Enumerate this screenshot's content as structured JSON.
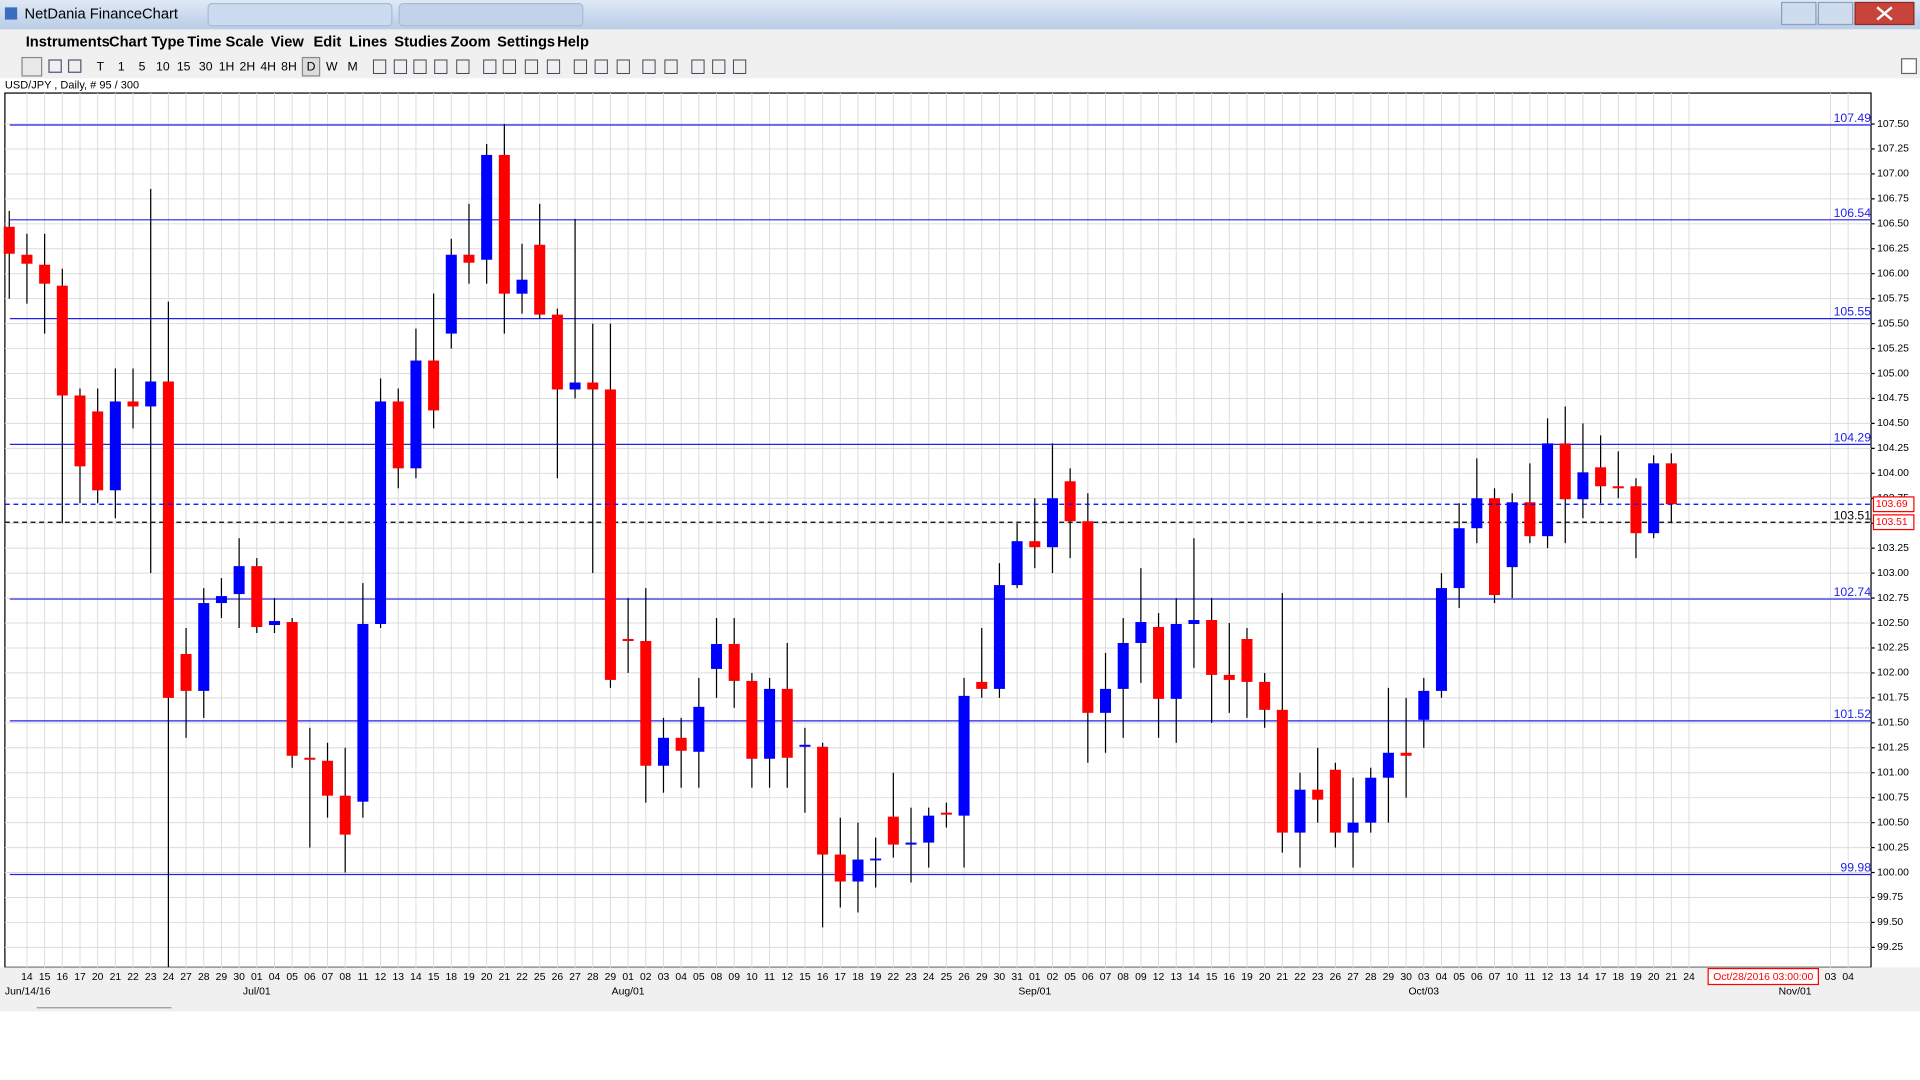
{
  "window": {
    "title": "NetDania FinanceChart"
  },
  "menu": [
    "Instruments",
    "Chart Type",
    "Time Scale",
    "View",
    "Edit",
    "Lines",
    "Studies",
    "Zoom",
    "Settings",
    "Help"
  ],
  "toolbar": {
    "timeframes": [
      "T",
      "1",
      "5",
      "10",
      "15",
      "30",
      "1H",
      "2H",
      "4H",
      "8H",
      "D",
      "W",
      "M"
    ]
  },
  "chart_data": {
    "type": "candlestick",
    "title": "USD/JPY , Daily, # 95 / 300",
    "up_color": "#0000ff",
    "down_color": "#ff0000",
    "level_color": "#2222ee",
    "grid": true,
    "dates": [
      "14",
      "15",
      "16",
      "17",
      "20",
      "21",
      "22",
      "23",
      "24",
      "27",
      "28",
      "29",
      "30",
      "01",
      "04",
      "05",
      "06",
      "07",
      "08",
      "11",
      "12",
      "13",
      "14",
      "15",
      "18",
      "19",
      "20",
      "21",
      "22",
      "25",
      "26",
      "27",
      "28",
      "29",
      "01",
      "02",
      "03",
      "04",
      "05",
      "08",
      "09",
      "10",
      "11",
      "12",
      "15",
      "16",
      "17",
      "18",
      "19",
      "22",
      "23",
      "24",
      "25",
      "26",
      "29",
      "30",
      "31",
      "01",
      "02",
      "05",
      "06",
      "07",
      "08",
      "09",
      "12",
      "13",
      "14",
      "15",
      "16",
      "19",
      "20",
      "21",
      "22",
      "23",
      "26",
      "27",
      "28",
      "29",
      "30",
      "03",
      "04",
      "05",
      "06",
      "07",
      "10",
      "11",
      "12",
      "13",
      "14",
      "17",
      "18",
      "19",
      "20",
      "21",
      "24"
    ],
    "cursor_time": "Oct/28/2016 03:00:00",
    "dates_after": [
      "03",
      "04"
    ],
    "months": [
      "Jun/14/16",
      "Jul/01",
      "Aug/01",
      "Sep/01",
      "Oct/03",
      "Nov/01"
    ],
    "open": [
      106.47,
      106.19,
      106.09,
      105.88,
      104.78,
      104.62,
      103.83,
      104.72,
      104.67,
      104.92,
      102.19,
      101.82,
      102.7,
      102.79,
      103.07,
      102.48,
      102.51,
      101.15,
      101.12,
      100.77,
      100.71,
      102.49,
      104.72,
      104.05,
      105.13,
      105.4,
      106.19,
      106.14,
      107.19,
      105.8,
      106.29,
      105.59,
      104.84,
      104.91,
      104.84,
      102.34,
      102.32,
      101.07,
      101.35,
      101.21,
      102.04,
      102.29,
      101.92,
      101.14,
      101.84,
      101.26,
      101.26,
      100.18,
      99.91,
      100.13,
      100.56,
      100.28,
      100.3,
      100.6,
      100.57,
      101.91,
      101.84,
      102.88,
      103.32,
      103.26,
      103.92,
      103.52,
      101.6,
      101.84,
      102.3,
      102.46,
      101.74,
      102.49,
      102.53,
      101.98,
      102.34,
      101.91,
      101.63,
      100.4,
      100.83,
      101.03,
      100.4,
      100.5,
      100.95,
      101.2,
      101.53,
      101.82,
      102.85,
      103.45,
      103.75,
      103.06,
      103.71,
      103.37,
      104.3,
      103.74,
      104.06,
      103.87,
      103.87,
      103.4,
      104.1
    ],
    "high": [
      106.63,
      106.4,
      106.4,
      106.05,
      104.85,
      104.85,
      105.05,
      105.05,
      106.85,
      105.72,
      102.45,
      102.85,
      102.95,
      103.35,
      103.15,
      102.75,
      102.55,
      101.45,
      101.3,
      101.25,
      102.9,
      104.95,
      104.85,
      105.45,
      105.8,
      106.35,
      106.7,
      107.3,
      107.5,
      106.3,
      106.7,
      105.65,
      106.55,
      105.5,
      105.5,
      102.75,
      102.85,
      101.55,
      101.55,
      101.95,
      102.55,
      102.55,
      102.0,
      101.95,
      102.3,
      101.45,
      101.3,
      100.55,
      100.5,
      100.35,
      101.0,
      100.65,
      100.65,
      100.7,
      101.95,
      102.45,
      103.1,
      103.5,
      103.75,
      104.3,
      104.05,
      103.8,
      102.2,
      102.55,
      103.05,
      102.6,
      102.75,
      103.35,
      102.75,
      102.5,
      102.45,
      102.0,
      102.8,
      101.0,
      101.25,
      101.1,
      100.95,
      101.05,
      101.85,
      101.75,
      101.95,
      103.0,
      103.7,
      104.15,
      103.85,
      103.8,
      104.1,
      104.55,
      104.67,
      104.5,
      104.38,
      104.22,
      103.95,
      104.18,
      104.2
    ],
    "low": [
      105.75,
      105.7,
      105.4,
      103.5,
      103.7,
      103.7,
      103.55,
      104.45,
      103.0,
      99.05,
      101.35,
      101.55,
      102.55,
      102.45,
      102.4,
      102.4,
      101.05,
      100.25,
      100.55,
      100.0,
      100.55,
      102.45,
      103.85,
      103.95,
      104.45,
      105.25,
      105.9,
      105.9,
      105.4,
      105.6,
      105.55,
      103.95,
      104.75,
      103.0,
      101.85,
      102.0,
      100.7,
      100.8,
      100.85,
      100.85,
      101.75,
      101.65,
      100.85,
      100.85,
      100.85,
      100.6,
      99.45,
      99.65,
      99.6,
      99.85,
      100.15,
      99.9,
      100.05,
      100.45,
      100.05,
      101.75,
      101.75,
      102.85,
      103.05,
      103.0,
      103.15,
      101.1,
      101.2,
      101.35,
      101.9,
      101.35,
      101.3,
      102.05,
      101.5,
      101.6,
      101.55,
      101.45,
      100.2,
      100.05,
      100.5,
      100.25,
      100.05,
      100.4,
      100.5,
      100.75,
      101.25,
      101.75,
      102.65,
      103.3,
      102.7,
      102.75,
      103.3,
      103.25,
      103.3,
      103.55,
      103.7,
      103.75,
      103.15,
      103.35,
      103.5
    ],
    "close": [
      106.2,
      106.1,
      105.9,
      104.78,
      104.07,
      103.83,
      104.72,
      104.67,
      104.92,
      101.75,
      101.82,
      102.7,
      102.77,
      103.07,
      102.46,
      102.52,
      101.17,
      101.13,
      100.77,
      100.38,
      102.49,
      104.72,
      104.05,
      105.13,
      104.63,
      106.19,
      106.11,
      107.19,
      105.8,
      105.94,
      105.59,
      104.84,
      104.91,
      104.84,
      101.93,
      102.32,
      101.07,
      101.35,
      101.22,
      101.66,
      102.29,
      101.92,
      101.14,
      101.84,
      101.15,
      101.28,
      100.18,
      99.91,
      100.13,
      100.14,
      100.28,
      100.3,
      100.57,
      100.58,
      101.77,
      101.84,
      102.88,
      103.32,
      103.26,
      103.75,
      103.52,
      101.6,
      101.84,
      102.3,
      102.51,
      101.74,
      102.49,
      102.53,
      101.98,
      101.93,
      101.91,
      101.63,
      100.4,
      100.83,
      100.73,
      100.4,
      100.5,
      100.95,
      101.2,
      101.17,
      101.82,
      102.85,
      103.45,
      103.75,
      102.78,
      103.71,
      103.37,
      104.3,
      103.74,
      104.01,
      103.87,
      103.85,
      103.4,
      104.1,
      103.69
    ],
    "levels": [
      107.49,
      106.54,
      105.55,
      104.29,
      102.74,
      101.52,
      99.98
    ],
    "current_price": {
      "value": 103.69,
      "label": "103.69"
    },
    "cursor_price": {
      "value": 103.51,
      "label": "103.51"
    },
    "ylim": [
      99.05,
      107.81
    ],
    "yticks": [
      {
        "value": 107.5,
        "label": "107.50"
      },
      107.25,
      {
        "value": 107,
        "label": "107.00"
      },
      106.75,
      {
        "value": 106.5,
        "label": "106.50"
      },
      106.25,
      {
        "value": 106,
        "label": "106.00"
      },
      105.75,
      {
        "value": 105.5,
        "label": "105.50"
      },
      105.25,
      {
        "value": 105,
        "label": "105.00"
      },
      104.75,
      {
        "value": 104.5,
        "label": "104.50"
      },
      104.25,
      {
        "value": 104,
        "label": "104.00"
      },
      103.75,
      {
        "value": 103.5,
        "label": "103.50"
      },
      103.25,
      {
        "value": 103,
        "label": "103.00"
      },
      102.75,
      {
        "value": 102.5,
        "label": "102.50"
      },
      102.25,
      {
        "value": 102,
        "label": "102.00"
      },
      101.75,
      {
        "value": 101.5,
        "label": "101.50"
      },
      101.25,
      {
        "value": 101,
        "label": "101.00"
      },
      100.75,
      {
        "value": 100.5,
        "label": "100.50"
      },
      100.25,
      {
        "value": 100,
        "label": "100.00"
      },
      99.75,
      {
        "value": 99.5,
        "label": "99.50"
      },
      99.25
    ]
  }
}
